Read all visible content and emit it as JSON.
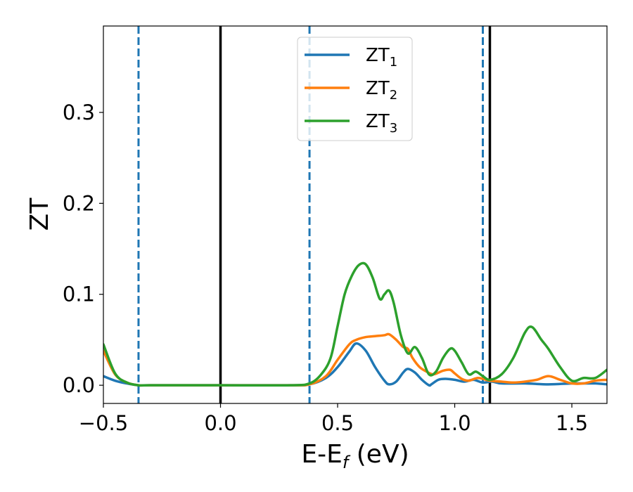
{
  "chart_data": {
    "type": "line",
    "xlabel": {
      "main": "E-E",
      "sub": "f",
      "rest": " (eV)"
    },
    "ylabel": "ZT",
    "xlim": [
      -0.5,
      1.65
    ],
    "ylim": [
      -0.02,
      0.395
    ],
    "xticks": [
      {
        "value": -0.5,
        "label": "−0.5"
      },
      {
        "value": 0.0,
        "label": "0.0"
      },
      {
        "value": 0.5,
        "label": "0.5"
      },
      {
        "value": 1.0,
        "label": "1.0"
      },
      {
        "value": 1.5,
        "label": "1.5"
      }
    ],
    "yticks": [
      {
        "value": 0.0,
        "label": "0.0"
      },
      {
        "value": 0.1,
        "label": "0.1"
      },
      {
        "value": 0.2,
        "label": "0.2"
      },
      {
        "value": 0.3,
        "label": "0.3"
      }
    ],
    "grid": false,
    "legend": {
      "placement": "top-center"
    },
    "vlines": [
      {
        "x": -0.35,
        "style": "dashed",
        "color": "#1f77b4"
      },
      {
        "x": 0.38,
        "style": "dashed",
        "color": "#1f77b4"
      },
      {
        "x": 1.12,
        "style": "dashed",
        "color": "#1f77b4"
      },
      {
        "x": 0.0,
        "style": "solid",
        "color": "#000000"
      },
      {
        "x": 1.15,
        "style": "solid",
        "color": "#000000"
      }
    ],
    "series": [
      {
        "name": "ZT",
        "sub": "1",
        "color": "#1f77b4",
        "x": [
          -0.5,
          -0.45,
          -0.4,
          -0.35,
          -0.3,
          0.0,
          0.3,
          0.38,
          0.45,
          0.5,
          0.55,
          0.58,
          0.62,
          0.66,
          0.7,
          0.72,
          0.75,
          0.78,
          0.8,
          0.83,
          0.86,
          0.89,
          0.9,
          0.93,
          0.96,
          1.0,
          1.04,
          1.08,
          1.12,
          1.16,
          1.2,
          1.3,
          1.4,
          1.5,
          1.55,
          1.6,
          1.65
        ],
        "y": [
          0.01,
          0.005,
          0.002,
          0.0,
          0.0,
          0.0,
          0.0,
          0.001,
          0.008,
          0.02,
          0.037,
          0.046,
          0.038,
          0.02,
          0.005,
          0.001,
          0.004,
          0.014,
          0.018,
          0.014,
          0.006,
          0.0,
          0.001,
          0.006,
          0.007,
          0.006,
          0.004,
          0.006,
          0.003,
          0.004,
          0.002,
          0.002,
          0.001,
          0.002,
          0.002,
          0.002,
          0.001
        ]
      },
      {
        "name": "ZT",
        "sub": "2",
        "color": "#ff7f0e",
        "x": [
          -0.5,
          -0.45,
          -0.4,
          -0.35,
          -0.3,
          0.0,
          0.3,
          0.38,
          0.45,
          0.5,
          0.55,
          0.58,
          0.62,
          0.66,
          0.7,
          0.72,
          0.75,
          0.78,
          0.8,
          0.82,
          0.85,
          0.88,
          0.91,
          0.95,
          0.98,
          1.0,
          1.03,
          1.06,
          1.1,
          1.15,
          1.2,
          1.25,
          1.3,
          1.35,
          1.4,
          1.45,
          1.5,
          1.55,
          1.6,
          1.65
        ],
        "y": [
          0.038,
          0.012,
          0.003,
          0.0,
          0.0,
          0.0,
          0.0,
          0.001,
          0.01,
          0.028,
          0.045,
          0.05,
          0.053,
          0.054,
          0.055,
          0.056,
          0.05,
          0.042,
          0.04,
          0.03,
          0.02,
          0.015,
          0.012,
          0.016,
          0.017,
          0.013,
          0.007,
          0.005,
          0.008,
          0.005,
          0.004,
          0.003,
          0.004,
          0.006,
          0.01,
          0.006,
          0.002,
          0.002,
          0.005,
          0.006
        ]
      },
      {
        "name": "ZT",
        "sub": "3",
        "color": "#2ca02c",
        "x": [
          -0.5,
          -0.45,
          -0.4,
          -0.35,
          -0.3,
          0.0,
          0.3,
          0.38,
          0.43,
          0.47,
          0.5,
          0.53,
          0.56,
          0.59,
          0.62,
          0.65,
          0.68,
          0.7,
          0.72,
          0.74,
          0.77,
          0.8,
          0.83,
          0.86,
          0.89,
          0.92,
          0.95,
          0.98,
          1.0,
          1.03,
          1.06,
          1.09,
          1.12,
          1.15,
          1.2,
          1.25,
          1.3,
          1.33,
          1.37,
          1.4,
          1.45,
          1.5,
          1.55,
          1.6,
          1.65
        ],
        "y": [
          0.045,
          0.013,
          0.003,
          0.0,
          0.0,
          0.0,
          0.0,
          0.002,
          0.012,
          0.03,
          0.065,
          0.1,
          0.12,
          0.132,
          0.133,
          0.118,
          0.095,
          0.1,
          0.104,
          0.09,
          0.055,
          0.035,
          0.042,
          0.03,
          0.012,
          0.015,
          0.03,
          0.04,
          0.038,
          0.025,
          0.012,
          0.015,
          0.01,
          0.006,
          0.012,
          0.03,
          0.058,
          0.064,
          0.05,
          0.04,
          0.02,
          0.005,
          0.008,
          0.008,
          0.017
        ]
      }
    ]
  }
}
